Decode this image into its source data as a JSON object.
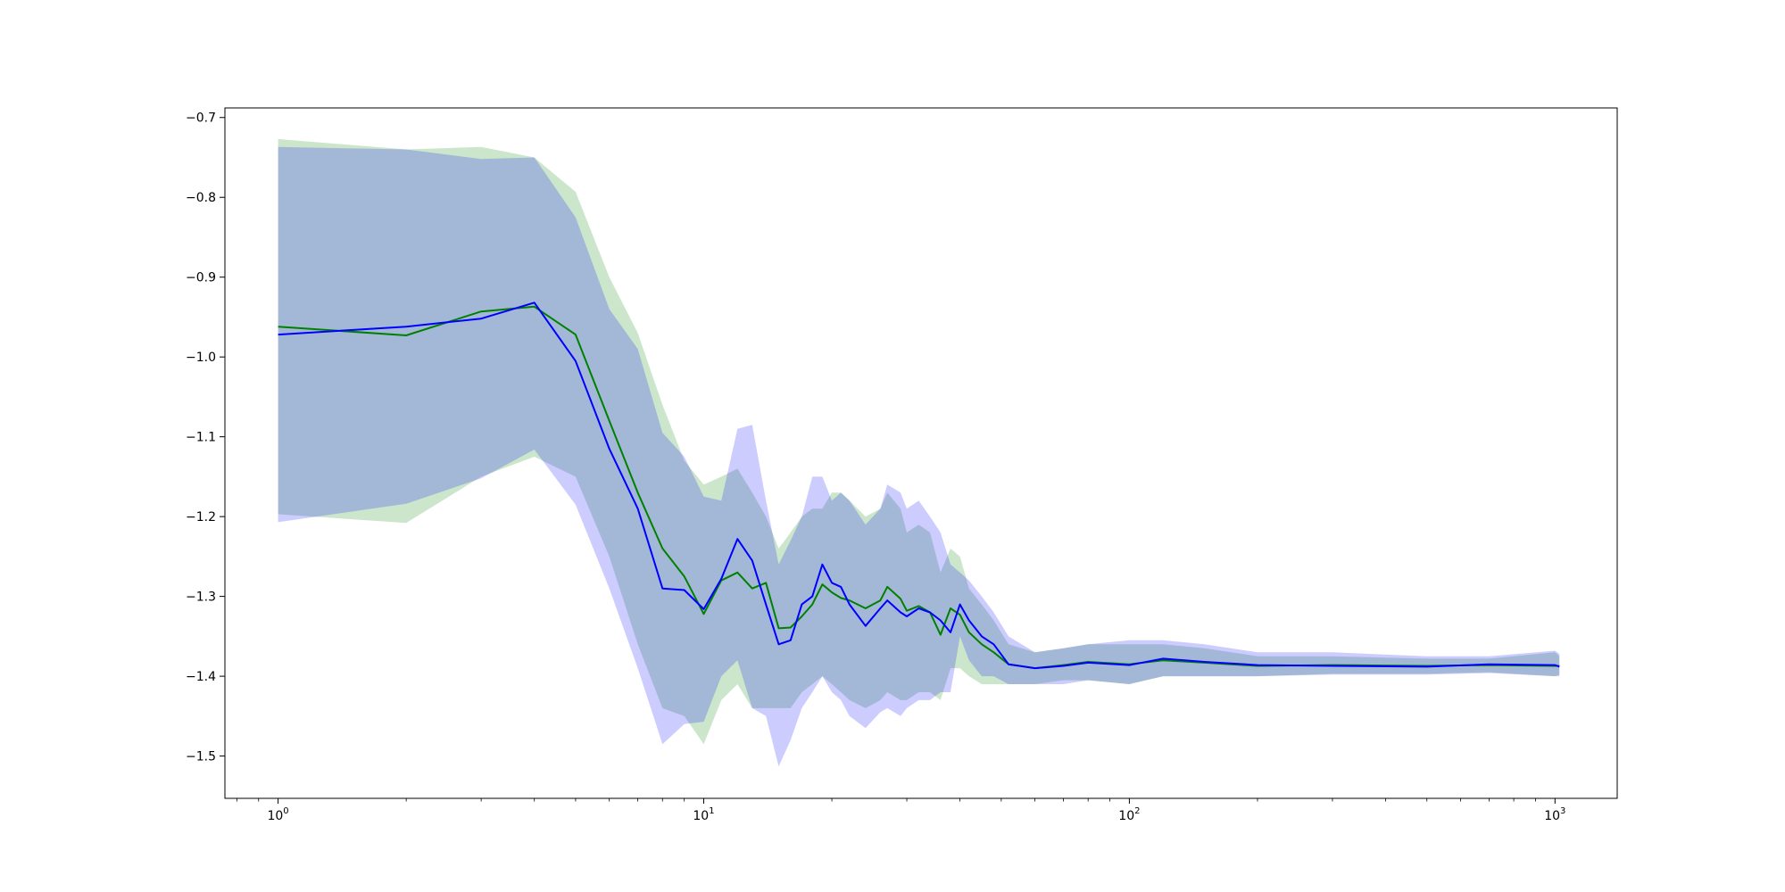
{
  "chart_data": {
    "type": "line",
    "title": "",
    "xlabel": "",
    "ylabel": "",
    "x_scale": "log",
    "xlim": [
      0.75,
      1400
    ],
    "ylim": [
      -1.553,
      -0.688
    ],
    "grid": false,
    "x_ticks": [
      {
        "value": 1,
        "base": "10",
        "exp": "0"
      },
      {
        "value": 10,
        "base": "10",
        "exp": "1"
      },
      {
        "value": 100,
        "base": "10",
        "exp": "2"
      },
      {
        "value": 1000,
        "base": "10",
        "exp": "3"
      }
    ],
    "y_ticks": [
      {
        "value": -0.7,
        "label": "−0.7"
      },
      {
        "value": -0.8,
        "label": "−0.8"
      },
      {
        "value": -0.9,
        "label": "−0.9"
      },
      {
        "value": -1.0,
        "label": "−1.0"
      },
      {
        "value": -1.1,
        "label": "−1.1"
      },
      {
        "value": -1.2,
        "label": "−1.2"
      },
      {
        "value": -1.3,
        "label": "−1.3"
      },
      {
        "value": -1.4,
        "label": "−1.4"
      },
      {
        "value": -1.5,
        "label": "−1.5"
      }
    ],
    "series": [
      {
        "color": "#008000",
        "band_color": "#008000",
        "band_opacity": 0.2,
        "x": [
          1,
          2,
          3,
          4,
          5,
          6,
          7,
          8,
          9,
          10,
          11,
          12,
          13,
          14,
          15,
          16,
          17,
          18,
          19,
          20,
          21,
          22,
          24,
          26,
          27,
          29,
          30,
          32,
          34,
          36,
          38,
          40,
          42,
          45,
          48,
          52,
          60,
          70,
          80,
          100,
          120,
          150,
          200,
          300,
          500,
          700,
          1000,
          1024
        ],
        "y": [
          -0.962,
          -0.973,
          -0.943,
          -0.937,
          -0.972,
          -1.08,
          -1.17,
          -1.24,
          -1.275,
          -1.322,
          -1.28,
          -1.27,
          -1.29,
          -1.283,
          -1.34,
          -1.339,
          -1.325,
          -1.31,
          -1.285,
          -1.295,
          -1.302,
          -1.305,
          -1.315,
          -1.305,
          -1.288,
          -1.303,
          -1.318,
          -1.312,
          -1.32,
          -1.348,
          -1.315,
          -1.323,
          -1.345,
          -1.36,
          -1.37,
          -1.385,
          -1.39,
          -1.386,
          -1.382,
          -1.385,
          -1.38,
          -1.383,
          -1.387,
          -1.386,
          -1.387,
          -1.386,
          -1.387,
          -1.387
        ],
        "upper": [
          -0.727,
          -0.74,
          -0.737,
          -0.75,
          -0.793,
          -0.9,
          -0.97,
          -1.06,
          -1.13,
          -1.16,
          -1.15,
          -1.14,
          -1.17,
          -1.2,
          -1.24,
          -1.22,
          -1.2,
          -1.19,
          -1.19,
          -1.17,
          -1.17,
          -1.18,
          -1.2,
          -1.19,
          -1.17,
          -1.19,
          -1.22,
          -1.21,
          -1.22,
          -1.27,
          -1.24,
          -1.25,
          -1.29,
          -1.31,
          -1.33,
          -1.36,
          -1.37,
          -1.365,
          -1.36,
          -1.36,
          -1.36,
          -1.365,
          -1.375,
          -1.375,
          -1.378,
          -1.378,
          -1.37,
          -1.375
        ],
        "lower": [
          -1.197,
          -1.208,
          -1.15,
          -1.125,
          -1.15,
          -1.25,
          -1.36,
          -1.44,
          -1.45,
          -1.485,
          -1.43,
          -1.41,
          -1.44,
          -1.44,
          -1.44,
          -1.44,
          -1.42,
          -1.41,
          -1.4,
          -1.41,
          -1.42,
          -1.43,
          -1.44,
          -1.43,
          -1.42,
          -1.43,
          -1.43,
          -1.42,
          -1.42,
          -1.43,
          -1.39,
          -1.39,
          -1.4,
          -1.41,
          -1.41,
          -1.41,
          -1.41,
          -1.405,
          -1.405,
          -1.41,
          -1.4,
          -1.4,
          -1.4,
          -1.397,
          -1.397,
          -1.395,
          -1.4,
          -1.398
        ]
      },
      {
        "color": "#0000ff",
        "band_color": "#0000ff",
        "band_opacity": 0.2,
        "x": [
          1,
          2,
          3,
          4,
          5,
          6,
          7,
          8,
          9,
          10,
          11,
          12,
          13,
          14,
          15,
          16,
          17,
          18,
          19,
          20,
          21,
          22,
          24,
          26,
          27,
          29,
          30,
          32,
          34,
          36,
          38,
          40,
          42,
          45,
          48,
          52,
          60,
          70,
          80,
          100,
          120,
          150,
          200,
          300,
          500,
          700,
          1000,
          1024
        ],
        "y": [
          -0.972,
          -0.962,
          -0.952,
          -0.932,
          -1.005,
          -1.115,
          -1.19,
          -1.29,
          -1.292,
          -1.316,
          -1.278,
          -1.228,
          -1.255,
          -1.31,
          -1.36,
          -1.355,
          -1.31,
          -1.3,
          -1.26,
          -1.283,
          -1.288,
          -1.31,
          -1.337,
          -1.315,
          -1.305,
          -1.32,
          -1.325,
          -1.315,
          -1.32,
          -1.33,
          -1.345,
          -1.31,
          -1.33,
          -1.35,
          -1.36,
          -1.385,
          -1.39,
          -1.387,
          -1.383,
          -1.386,
          -1.378,
          -1.382,
          -1.386,
          -1.387,
          -1.388,
          -1.385,
          -1.386,
          -1.388
        ],
        "upper": [
          -0.737,
          -0.74,
          -0.752,
          -0.75,
          -0.825,
          -0.94,
          -0.99,
          -1.095,
          -1.125,
          -1.175,
          -1.18,
          -1.09,
          -1.085,
          -1.18,
          -1.26,
          -1.23,
          -1.2,
          -1.15,
          -1.15,
          -1.18,
          -1.17,
          -1.18,
          -1.21,
          -1.19,
          -1.16,
          -1.17,
          -1.19,
          -1.18,
          -1.2,
          -1.22,
          -1.26,
          -1.27,
          -1.28,
          -1.3,
          -1.32,
          -1.35,
          -1.37,
          -1.365,
          -1.36,
          -1.355,
          -1.355,
          -1.36,
          -1.37,
          -1.37,
          -1.375,
          -1.375,
          -1.368,
          -1.372
        ],
        "lower": [
          -1.207,
          -1.184,
          -1.152,
          -1.116,
          -1.185,
          -1.29,
          -1.39,
          -1.485,
          -1.46,
          -1.457,
          -1.4,
          -1.38,
          -1.44,
          -1.45,
          -1.513,
          -1.48,
          -1.44,
          -1.42,
          -1.4,
          -1.42,
          -1.43,
          -1.45,
          -1.465,
          -1.445,
          -1.44,
          -1.45,
          -1.44,
          -1.43,
          -1.43,
          -1.42,
          -1.42,
          -1.35,
          -1.38,
          -1.4,
          -1.4,
          -1.41,
          -1.41,
          -1.41,
          -1.405,
          -1.41,
          -1.4,
          -1.4,
          -1.4,
          -1.398,
          -1.398,
          -1.396,
          -1.4,
          -1.4
        ]
      }
    ]
  }
}
